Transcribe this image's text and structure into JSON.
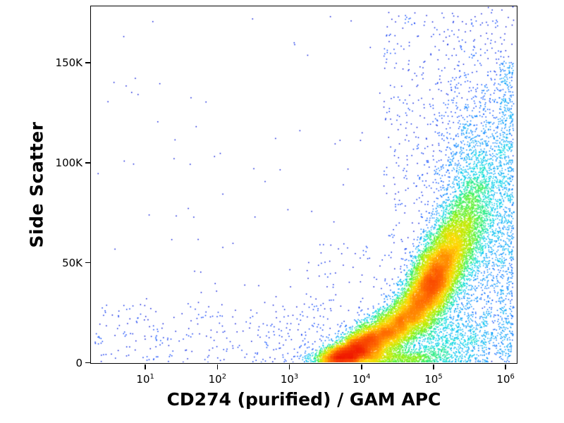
{
  "figure": {
    "background": "#ffffff",
    "axis_color": "#000000",
    "text_color": "#000000"
  },
  "chart_data": {
    "type": "scatter",
    "subtype": "flow-cytometry-pseudocolor-density",
    "title": "",
    "xlabel": "CD274 (purified) / GAM APC",
    "ylabel": "Side Scatter",
    "x_scale": "log10",
    "y_scale": "linear",
    "x_log_range": [
      0.25,
      6.15
    ],
    "y_range": [
      0,
      178000
    ],
    "x_ticks": [
      {
        "base": "10",
        "exp": "1",
        "log": 1
      },
      {
        "base": "10",
        "exp": "2",
        "log": 2
      },
      {
        "base": "10",
        "exp": "3",
        "log": 3
      },
      {
        "base": "10",
        "exp": "4",
        "log": 4
      },
      {
        "base": "10",
        "exp": "5",
        "log": 5
      },
      {
        "base": "10",
        "exp": "6",
        "log": 6
      }
    ],
    "y_ticks": [
      {
        "label": "0",
        "value": 0
      },
      {
        "label": "50K",
        "value": 50000
      },
      {
        "label": "100K",
        "value": 100000
      },
      {
        "label": "150K",
        "value": 150000
      }
    ],
    "grid": "off",
    "legend": "none",
    "colormap": [
      "#0000C8",
      "#0040FF",
      "#0090FF",
      "#00D8E8",
      "#30F060",
      "#A8F000",
      "#FFD800",
      "#FF7000",
      "#F01800"
    ],
    "density_hotspots": [
      {
        "x": 100000,
        "y": 40000,
        "intensity": "max-red"
      },
      {
        "x": 12000,
        "y": 10000,
        "intensity": "high-orange"
      }
    ],
    "note": "cx is log10 of x value; sx in decades; cy/sy in Side Scatter units; rho is x-y correlation",
    "clusters": [
      {
        "type": "gauss",
        "n": 5200,
        "cx": 5.0,
        "cy": 40000,
        "sx": 0.2,
        "sy": 11000,
        "rho": 0.55
      },
      {
        "type": "gauss",
        "n": 2600,
        "cx": 5.12,
        "cy": 52000,
        "sx": 0.22,
        "sy": 13000,
        "rho": 0.6
      },
      {
        "type": "gauss",
        "n": 2000,
        "cx": 4.78,
        "cy": 28000,
        "sx": 0.2,
        "sy": 9000,
        "rho": 0.5
      },
      {
        "type": "gauss",
        "n": 1700,
        "cx": 4.55,
        "cy": 20000,
        "sx": 0.18,
        "sy": 7500,
        "rho": 0.5
      },
      {
        "type": "gauss",
        "n": 1600,
        "cx": 4.32,
        "cy": 14000,
        "sx": 0.17,
        "sy": 6000,
        "rho": 0.4
      },
      {
        "type": "gauss",
        "n": 2400,
        "cx": 4.08,
        "cy": 10000,
        "sx": 0.16,
        "sy": 5000,
        "rho": 0.35
      },
      {
        "type": "gauss",
        "n": 1800,
        "cx": 3.88,
        "cy": 6000,
        "sx": 0.16,
        "sy": 3800,
        "rho": 0.3
      },
      {
        "type": "gauss",
        "n": 1600,
        "cx": 3.7,
        "cy": 3000,
        "sx": 0.15,
        "sy": 2600,
        "rho": 0.2
      },
      {
        "type": "gauss",
        "n": 1200,
        "cx": 4.3,
        "cy": 2500,
        "sx": 0.5,
        "sy": 2200,
        "rho": 0.0
      },
      {
        "type": "gauss",
        "n": 1500,
        "cx": 5.35,
        "cy": 62000,
        "sx": 0.24,
        "sy": 16000,
        "rho": 0.6
      },
      {
        "type": "gauss",
        "n": 1100,
        "cx": 5.55,
        "cy": 75000,
        "sx": 0.22,
        "sy": 22000,
        "rho": 0.5
      },
      {
        "type": "gauss",
        "n": 900,
        "cx": 5.45,
        "cy": 95000,
        "sx": 0.3,
        "sy": 30000,
        "rho": 0.3
      },
      {
        "type": "gauss",
        "n": 700,
        "cx": 5.8,
        "cy": 55000,
        "sx": 0.18,
        "sy": 30000,
        "rho": 0.2
      },
      {
        "type": "gauss",
        "n": 900,
        "cx": 5.15,
        "cy": 12000,
        "sx": 0.35,
        "sy": 8000,
        "rho": 0.0
      },
      {
        "type": "uniform",
        "n": 550,
        "x0": 5.92,
        "x1": 6.12,
        "y0": 0,
        "y1": 150000
      },
      {
        "type": "uniform",
        "n": 500,
        "x0": 4.3,
        "x1": 6.1,
        "y0": 60000,
        "y1": 175000
      },
      {
        "type": "uniform",
        "n": 350,
        "x0": 3.2,
        "x1": 6.1,
        "y0": 0,
        "y1": 60000
      },
      {
        "type": "uniform",
        "n": 260,
        "x0": 0.3,
        "x1": 3.5,
        "y0": 0,
        "y1": 30000
      },
      {
        "type": "uniform",
        "n": 120,
        "x0": 0.3,
        "x1": 6.1,
        "y0": 0,
        "y1": 175000
      }
    ]
  }
}
